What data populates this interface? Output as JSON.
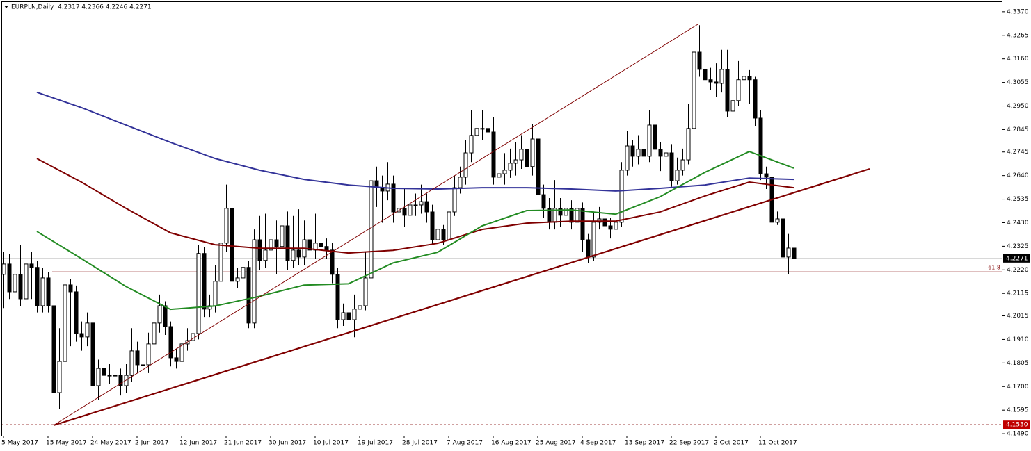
{
  "chart_data": {
    "type": "candlestick",
    "title": "EURPLN,Daily  4.2317 4.2366 4.2246 4.2271",
    "categories": [
      "5 May 2017",
      null,
      null,
      null,
      null,
      null,
      null,
      null,
      "15 May 2017",
      null,
      null,
      null,
      null,
      null,
      null,
      null,
      "24 May 2017",
      null,
      null,
      null,
      null,
      null,
      null,
      null,
      "2 Jun 2017",
      null,
      null,
      null,
      null,
      null,
      null,
      null,
      "12 Jun 2017",
      null,
      null,
      null,
      null,
      null,
      null,
      null,
      "21 Jun 2017",
      null,
      null,
      null,
      null,
      null,
      null,
      null,
      "30 Jun 2017",
      null,
      null,
      null,
      null,
      null,
      null,
      null,
      "10 Jul 2017",
      null,
      null,
      null,
      null,
      null,
      null,
      null,
      "19 Jul 2017",
      null,
      null,
      null,
      null,
      null,
      null,
      null,
      "28 Jul 2017",
      null,
      null,
      null,
      null,
      null,
      null,
      null,
      "7 Aug 2017",
      null,
      null,
      null,
      null,
      null,
      null,
      null,
      "16 Aug 2017",
      null,
      null,
      null,
      null,
      null,
      null,
      null,
      "25 Aug 2017",
      null,
      null,
      null,
      null,
      null,
      null,
      null,
      "4 Sep 2017",
      null,
      null,
      null,
      null,
      null,
      null,
      null,
      "13 Sep 2017",
      null,
      null,
      null,
      null,
      null,
      null,
      null,
      "22 Sep 2017",
      null,
      null,
      null,
      null,
      null,
      null,
      null,
      "2 Oct 2017",
      null,
      null,
      null,
      null,
      null,
      null,
      null,
      "11 Oct 2017",
      null,
      null,
      null,
      null,
      null,
      null
    ],
    "open": [
      4.22,
      4.2246,
      4.2122,
      4.22,
      4.2091,
      4.2246,
      4.2231,
      4.206,
      4.2184,
      4.206,
      4.1673,
      4.1812,
      4.2153,
      4.2122,
      4.1936,
      4.1921,
      4.1983,
      4.1704,
      4.1781,
      4.175,
      4.175,
      4.175,
      4.1704,
      4.175,
      4.1859,
      4.1797,
      4.1797,
      4.189,
      4.1983,
      4.206,
      4.1967,
      4.1828,
      4.1812,
      4.189,
      4.1905,
      4.1936,
      4.2293,
      4.2045,
      4.206,
      4.2169,
      4.2339,
      4.2494,
      4.2169,
      4.2184,
      4.2231,
      4.1983,
      4.2354,
      4.2262,
      4.2308,
      4.2354,
      4.2324,
      4.2416,
      4.2262,
      4.2308,
      4.2277,
      4.2354,
      4.2308,
      4.2339,
      4.2324,
      4.2308,
      4.22,
      4.1998,
      4.2029,
      4.1998,
      4.2045,
      4.206,
      4.2184,
      4.2617,
      4.2586,
      4.2571,
      4.2602,
      4.2478,
      4.2494,
      4.2463,
      4.2509,
      4.2509,
      4.2524,
      4.2478,
      4.2354,
      4.2401,
      4.2354,
      4.2478,
      4.2586,
      4.2633,
      4.2741,
      4.2819,
      4.285,
      4.285,
      4.2834,
      4.2633,
      4.2648,
      4.2664,
      4.2695,
      4.271,
      4.2757,
      4.268,
      4.2803,
      4.2555,
      4.2494,
      4.2432,
      4.2494,
      4.2463,
      4.2494,
      4.2432,
      4.2494,
      4.2354,
      4.2277,
      4.2432,
      4.2447,
      4.2416,
      4.2401,
      4.2432,
      4.2664,
      4.2772,
      4.2726,
      4.2757,
      4.2726,
      4.2865,
      4.2757,
      4.2726,
      4.2741,
      4.2617,
      4.2664,
      4.271,
      4.285,
      4.319,
      4.3113,
      4.3067,
      4.3057,
      4.3051,
      4.3113,
      4.2927,
      4.2974,
      4.3067,
      4.3082,
      4.3067,
      4.2896,
      4.2648,
      4.2633,
      4.2432,
      4.2447,
      4.2277,
      4.2317
    ],
    "high": [
      4.23,
      4.229,
      4.229,
      4.233,
      4.23,
      4.23,
      4.226,
      4.223,
      4.221,
      4.208,
      4.196,
      4.226,
      4.218,
      4.215,
      4.199,
      4.203,
      4.201,
      4.182,
      4.183,
      4.18,
      4.179,
      4.178,
      4.18,
      4.196,
      4.19,
      4.188,
      4.194,
      4.209,
      4.211,
      4.208,
      4.199,
      4.187,
      4.194,
      4.196,
      4.198,
      4.233,
      4.232,
      4.211,
      4.224,
      4.248,
      4.26,
      4.252,
      4.223,
      4.229,
      4.226,
      4.24,
      4.246,
      4.247,
      4.252,
      4.244,
      4.248,
      4.248,
      4.246,
      4.249,
      4.244,
      4.24,
      4.247,
      4.238,
      4.236,
      4.234,
      4.223,
      4.207,
      4.205,
      4.211,
      4.216,
      4.23,
      4.265,
      4.268,
      4.264,
      4.27,
      4.264,
      4.262,
      4.258,
      4.256,
      4.256,
      4.26,
      4.256,
      4.251,
      4.246,
      4.242,
      4.253,
      4.264,
      4.268,
      4.28,
      4.293,
      4.29,
      4.293,
      4.293,
      4.29,
      4.272,
      4.274,
      4.276,
      4.279,
      4.282,
      4.286,
      4.287,
      4.283,
      4.26,
      4.254,
      4.262,
      4.254,
      4.255,
      4.253,
      4.255,
      4.252,
      4.238,
      4.248,
      4.25,
      4.248,
      4.245,
      4.248,
      4.27,
      4.284,
      4.28,
      4.282,
      4.28,
      4.293,
      4.294,
      4.279,
      4.285,
      4.278,
      4.272,
      4.276,
      4.296,
      4.322,
      4.331,
      4.319,
      4.312,
      4.314,
      4.32,
      4.32,
      4.312,
      4.315,
      4.314,
      4.311,
      4.308,
      4.293,
      4.268,
      4.266,
      4.248,
      4.251,
      4.238,
      4.2366
    ],
    "low": [
      4.205,
      4.209,
      4.187,
      4.206,
      4.206,
      4.209,
      4.203,
      4.203,
      4.203,
      4.153,
      4.16,
      4.178,
      4.188,
      4.19,
      4.186,
      4.188,
      4.167,
      4.164,
      4.172,
      4.171,
      4.17,
      4.166,
      4.167,
      4.172,
      4.176,
      4.176,
      4.176,
      4.186,
      4.194,
      4.193,
      4.179,
      4.178,
      4.178,
      4.186,
      4.188,
      4.191,
      4.201,
      4.201,
      4.203,
      4.214,
      4.23,
      4.213,
      4.214,
      4.215,
      4.196,
      4.196,
      4.222,
      4.223,
      4.227,
      4.22,
      4.228,
      4.222,
      4.223,
      4.224,
      4.224,
      4.225,
      4.227,
      4.228,
      4.227,
      4.216,
      4.196,
      4.197,
      4.192,
      4.192,
      4.202,
      4.204,
      4.216,
      4.25,
      4.243,
      4.253,
      4.243,
      4.244,
      4.241,
      4.243,
      4.246,
      4.247,
      4.243,
      4.233,
      4.233,
      4.233,
      4.234,
      4.246,
      4.256,
      4.26,
      4.27,
      4.278,
      4.28,
      4.278,
      4.26,
      4.256,
      4.26,
      4.263,
      4.264,
      4.267,
      4.264,
      4.264,
      4.252,
      4.245,
      4.24,
      4.24,
      4.241,
      4.243,
      4.24,
      4.24,
      4.23,
      4.225,
      4.226,
      4.24,
      4.238,
      4.236,
      4.237,
      4.241,
      4.264,
      4.268,
      4.269,
      4.268,
      4.27,
      4.272,
      4.266,
      4.268,
      4.259,
      4.26,
      4.264,
      4.269,
      4.282,
      4.308,
      4.295,
      4.302,
      4.299,
      4.301,
      4.29,
      4.29,
      4.295,
      4.304,
      4.296,
      4.286,
      4.262,
      4.258,
      4.24,
      4.242,
      4.223,
      4.22,
      4.2246
    ],
    "close": [
      4.2246,
      4.2122,
      4.22,
      4.2091,
      4.2246,
      4.2231,
      4.206,
      4.2184,
      4.206,
      4.1673,
      4.1812,
      4.2153,
      4.2122,
      4.1936,
      4.1921,
      4.1983,
      4.1704,
      4.1781,
      4.175,
      4.175,
      4.175,
      4.1704,
      4.175,
      4.1859,
      4.1797,
      4.1797,
      4.189,
      4.1983,
      4.206,
      4.1967,
      4.1828,
      4.1812,
      4.189,
      4.1905,
      4.1936,
      4.2293,
      4.2045,
      4.206,
      4.2169,
      4.2339,
      4.2494,
      4.2169,
      4.2184,
      4.2231,
      4.1983,
      4.2354,
      4.2262,
      4.2308,
      4.2354,
      4.2324,
      4.2416,
      4.2262,
      4.2308,
      4.2277,
      4.2354,
      4.2308,
      4.2339,
      4.2324,
      4.2308,
      4.22,
      4.1998,
      4.2029,
      4.1998,
      4.2045,
      4.206,
      4.2184,
      4.2617,
      4.2586,
      4.2571,
      4.2602,
      4.2478,
      4.2494,
      4.2463,
      4.2509,
      4.2509,
      4.2524,
      4.2478,
      4.2354,
      4.2401,
      4.2354,
      4.2478,
      4.2586,
      4.2633,
      4.2741,
      4.2819,
      4.285,
      4.285,
      4.2834,
      4.2633,
      4.2648,
      4.2664,
      4.2695,
      4.271,
      4.2757,
      4.268,
      4.2803,
      4.2555,
      4.2494,
      4.2432,
      4.2494,
      4.2463,
      4.2494,
      4.2432,
      4.2494,
      4.2354,
      4.2277,
      4.2432,
      4.2447,
      4.2416,
      4.2401,
      4.2432,
      4.2664,
      4.2772,
      4.2726,
      4.2757,
      4.2726,
      4.2865,
      4.2757,
      4.2726,
      4.2741,
      4.2617,
      4.2664,
      4.271,
      4.285,
      4.319,
      4.3113,
      4.3067,
      4.3057,
      4.3051,
      4.3113,
      4.2927,
      4.2974,
      4.3067,
      4.3082,
      4.3067,
      4.2896,
      4.2648,
      4.2633,
      4.2432,
      4.2447,
      4.2277,
      4.2317,
      4.2271
    ],
    "moving_averages": [
      {
        "color": "#333399",
        "values": [
          4.3011,
          4.2943,
          4.2865,
          4.2788,
          4.2716,
          4.2664,
          4.2623,
          4.2598,
          4.2583,
          4.258,
          4.2586,
          4.2586,
          4.258,
          4.2571,
          4.2583,
          4.2598,
          4.2629,
          4.2623
        ]
      },
      {
        "color": "#7f0000",
        "values": [
          4.2716,
          4.2611,
          4.2494,
          4.2385,
          4.2332,
          4.2316,
          4.2316,
          4.2295,
          4.2307,
          4.2338,
          4.24,
          4.2428,
          4.2437,
          4.2437,
          4.2478,
          4.2549,
          4.2611,
          4.2586
        ]
      },
      {
        "color": "#228b22",
        "values": [
          4.2391,
          4.227,
          4.2146,
          4.2044,
          4.2059,
          4.2102,
          4.2152,
          4.2158,
          4.2251,
          4.2298,
          4.2416,
          4.2484,
          4.2487,
          4.2468,
          4.2546,
          4.2654,
          4.2747,
          4.2673
        ]
      }
    ],
    "ylim": [
      4.1481,
      4.3416
    ],
    "yticks": [
      {
        "value": 4.337,
        "label": "4.3370"
      },
      4.3265,
      {
        "value": 4.316,
        "label": "4.3160"
      },
      4.3055,
      {
        "value": 4.295,
        "label": "4.2950"
      },
      4.2845,
      4.2745,
      {
        "value": 4.264,
        "label": "4.2640"
      },
      4.2535,
      {
        "value": 4.243,
        "label": "4.2430"
      },
      4.2325,
      {
        "value": 4.222,
        "label": "4.2220"
      },
      4.2115,
      4.2015,
      {
        "value": 4.191,
        "label": "4.1910"
      },
      4.1805,
      {
        "value": 4.17,
        "label": "4.1700"
      },
      4.1595,
      {
        "value": 4.149,
        "label": "4.1490"
      }
    ],
    "last_price": 4.2271,
    "price_marker": {
      "value": 4.153,
      "label": "4.1530"
    },
    "fib_level": {
      "label": "61.8",
      "price": 4.2211
    }
  }
}
